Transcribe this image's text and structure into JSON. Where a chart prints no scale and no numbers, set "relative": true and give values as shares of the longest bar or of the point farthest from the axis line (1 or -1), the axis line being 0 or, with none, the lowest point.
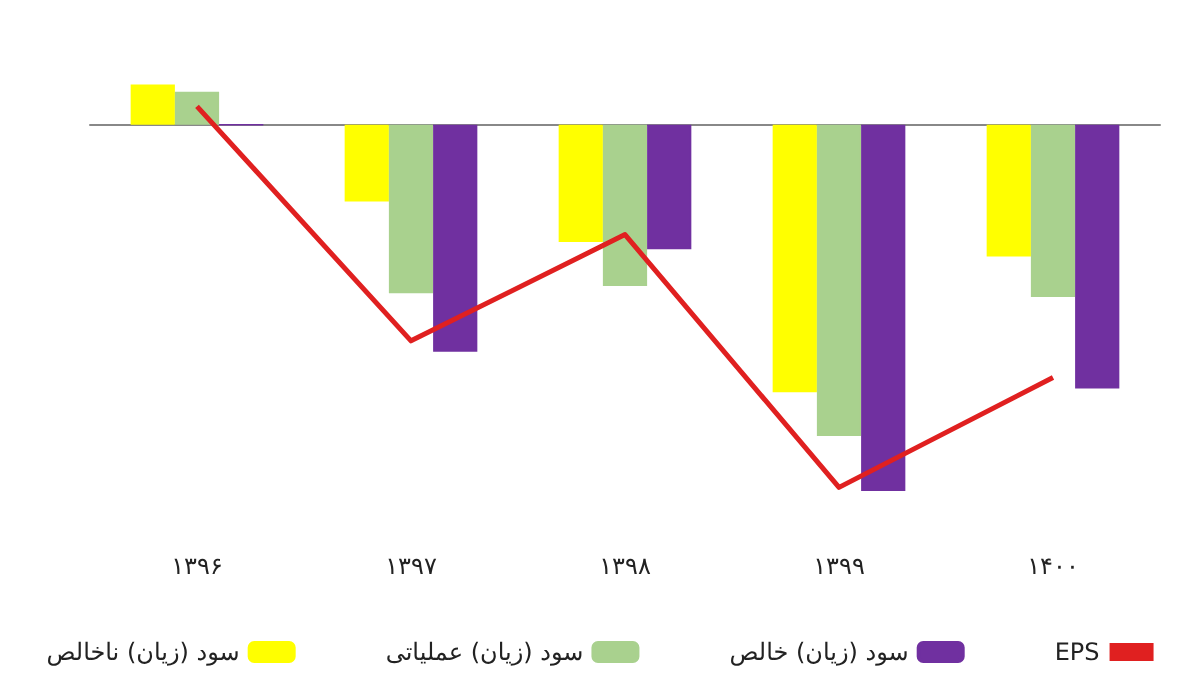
{
  "chart_data": {
    "type": "bar",
    "relative": true,
    "categories": [
      "۱۳۹۶",
      "۱۳۹۷",
      "۱۳۹۸",
      "۱۳۹۹",
      "۱۴۰۰"
    ],
    "series": [
      {
        "name": "سود (زیان) ناخالص",
        "color": "#ffff00",
        "values": [
          0.11,
          -0.21,
          -0.32,
          -0.73,
          -0.36
        ]
      },
      {
        "name": "سود (زیان) عملیاتی",
        "color": "#a9d18e",
        "values": [
          0.09,
          -0.46,
          -0.44,
          -0.85,
          -0.47
        ]
      },
      {
        "name": "سود (زیان) خالص",
        "color": "#7030a0",
        "values": [
          0,
          -0.62,
          -0.34,
          -1,
          -0.72
        ]
      },
      {
        "name": "EPS",
        "type": "line",
        "color": "#e02020",
        "values": [
          0.05,
          -0.59,
          -0.3,
          -0.99,
          -0.69
        ],
        "marker": "none",
        "line_style": "solid"
      }
    ],
    "legend": "bottom",
    "grid": false
  }
}
